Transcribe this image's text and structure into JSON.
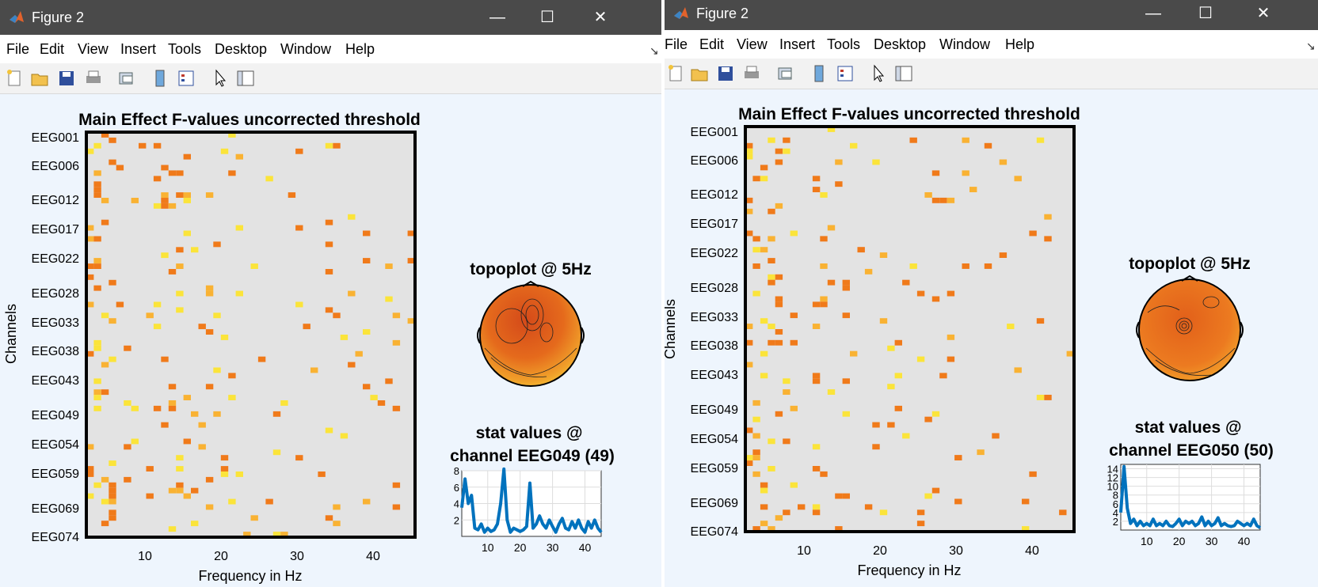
{
  "windows": [
    {
      "title": "Figure 2",
      "menu": [
        "File",
        "Edit",
        "View",
        "Insert",
        "Tools",
        "Desktop",
        "Window",
        "Help"
      ],
      "toolbar_icons": [
        "new-figure-icon",
        "open-file-icon",
        "save-icon",
        "print-icon",
        "link-plot-icon",
        "colorbar-icon",
        "legend-icon",
        "pointer-icon",
        "property-inspector-icon"
      ],
      "main_plot": {
        "title": "Main Effect F-values uncorrected threshold",
        "ylabel": "Channels",
        "xlabel": "Frequency in Hz",
        "channel_ticks": [
          "EEG001",
          "EEG006",
          "EEG012",
          "EEG017",
          "EEG022",
          "EEG028",
          "EEG033",
          "EEG038",
          "EEG043",
          "EEG049",
          "EEG054",
          "EEG059",
          "EEG069",
          "EEG074"
        ],
        "freq_ticks": [
          "10",
          "20",
          "30",
          "40"
        ]
      },
      "topoplot_title": "topoplot @ 5Hz",
      "stat_title_line1": "stat values @",
      "stat_title_line2": "channel EEG049 (49)",
      "stat_yticks": [
        "8",
        "6",
        "4",
        "2"
      ],
      "stat_xticks": [
        "10",
        "20",
        "30",
        "40"
      ]
    },
    {
      "title": "Figure 2",
      "menu": [
        "File",
        "Edit",
        "View",
        "Insert",
        "Tools",
        "Desktop",
        "Window",
        "Help"
      ],
      "toolbar_icons": [
        "new-figure-icon",
        "open-file-icon",
        "save-icon",
        "print-icon",
        "link-plot-icon",
        "colorbar-icon",
        "legend-icon",
        "pointer-icon",
        "property-inspector-icon"
      ],
      "main_plot": {
        "title": "Main Effect F-values uncorrected threshold",
        "ylabel": "Channels",
        "xlabel": "Frequency in Hz",
        "channel_ticks": [
          "EEG001",
          "EEG006",
          "EEG012",
          "EEG017",
          "EEG022",
          "EEG028",
          "EEG033",
          "EEG038",
          "EEG043",
          "EEG049",
          "EEG054",
          "EEG059",
          "EEG069",
          "EEG074"
        ],
        "freq_ticks": [
          "10",
          "20",
          "30",
          "40"
        ]
      },
      "topoplot_title": "topoplot @ 5Hz",
      "stat_title_line1": "stat values @",
      "stat_title_line2": "channel EEG050 (50)",
      "stat_yticks": [
        "14",
        "12",
        "10",
        "8",
        "6",
        "4",
        "2"
      ],
      "stat_xticks": [
        "10",
        "20",
        "30",
        "40"
      ]
    }
  ],
  "colors": {
    "titlebar": "#4a4a4a",
    "figure_bg": "#eef5fd",
    "plot_bg": "#e3e3e3",
    "sig_orange": "#f07a1a",
    "sig_light": "#f9b233",
    "sig_yellow": "#fbe43a",
    "line_blue": "#0072bd"
  },
  "chart_data": [
    {
      "type": "heatmap",
      "title": "Main Effect F-values uncorrected threshold",
      "xlabel": "Frequency in Hz",
      "ylabel": "Channels",
      "x_ticks": [
        10,
        20,
        30,
        40
      ],
      "y_ticks": [
        "EEG001",
        "EEG006",
        "EEG012",
        "EEG017",
        "EEG022",
        "EEG028",
        "EEG033",
        "EEG038",
        "EEG043",
        "EEG049",
        "EEG054",
        "EEG059",
        "EEG069",
        "EEG074"
      ],
      "xlim": [
        2,
        45
      ],
      "grid": false
    },
    {
      "type": "line",
      "title": "stat values @ channel EEG049 (49)",
      "x": [
        2,
        3,
        4,
        5,
        6,
        7,
        8,
        9,
        10,
        11,
        12,
        13,
        14,
        15,
        16,
        17,
        18,
        19,
        20,
        21,
        22,
        23,
        24,
        25,
        26,
        27,
        28,
        29,
        30,
        31,
        32,
        33,
        34,
        35,
        36,
        37,
        38,
        39,
        40,
        41,
        42,
        43,
        44,
        45
      ],
      "values": [
        3.5,
        7,
        4,
        5,
        1,
        0.8,
        1.5,
        0.5,
        1,
        0.6,
        0.8,
        1.5,
        4,
        8.2,
        2,
        0.5,
        1,
        0.8,
        0.6,
        0.8,
        1.2,
        6.5,
        1,
        1.5,
        2.5,
        1.5,
        1,
        2,
        1.2,
        0.5,
        1.5,
        2.2,
        1,
        0.8,
        1.8,
        1,
        2,
        1,
        0.5,
        1.8,
        1,
        2,
        1,
        0.5
      ],
      "ylim": [
        0,
        8
      ],
      "xlim": [
        2,
        45
      ],
      "grid": true
    },
    {
      "type": "heatmap",
      "title": "Main Effect F-values uncorrected threshold",
      "xlabel": "Frequency in Hz",
      "ylabel": "Channels",
      "x_ticks": [
        10,
        20,
        30,
        40
      ],
      "y_ticks": [
        "EEG001",
        "EEG006",
        "EEG012",
        "EEG017",
        "EEG022",
        "EEG028",
        "EEG033",
        "EEG038",
        "EEG043",
        "EEG049",
        "EEG054",
        "EEG059",
        "EEG069",
        "EEG074"
      ],
      "xlim": [
        2,
        45
      ],
      "grid": false
    },
    {
      "type": "line",
      "title": "stat values @ channel EEG050 (50)",
      "x": [
        2,
        3,
        4,
        5,
        6,
        7,
        8,
        9,
        10,
        11,
        12,
        13,
        14,
        15,
        16,
        17,
        18,
        19,
        20,
        21,
        22,
        23,
        24,
        25,
        26,
        27,
        28,
        29,
        30,
        31,
        32,
        33,
        34,
        35,
        36,
        37,
        38,
        39,
        40,
        41,
        42,
        43,
        44,
        45
      ],
      "values": [
        4,
        14.5,
        5,
        1.5,
        2.5,
        1,
        2,
        1,
        1.5,
        1,
        2.5,
        1,
        1.5,
        1,
        2,
        1,
        0.8,
        1.5,
        2.5,
        1,
        2,
        1.5,
        2,
        1,
        1.5,
        3,
        1,
        2,
        1,
        1.5,
        2.8,
        1,
        1.5,
        1,
        0.8,
        1,
        2,
        1.5,
        1,
        1.5,
        1,
        2.5,
        1,
        0.5
      ],
      "ylim": [
        0,
        15
      ],
      "xlim": [
        2,
        45
      ],
      "grid": true
    }
  ]
}
